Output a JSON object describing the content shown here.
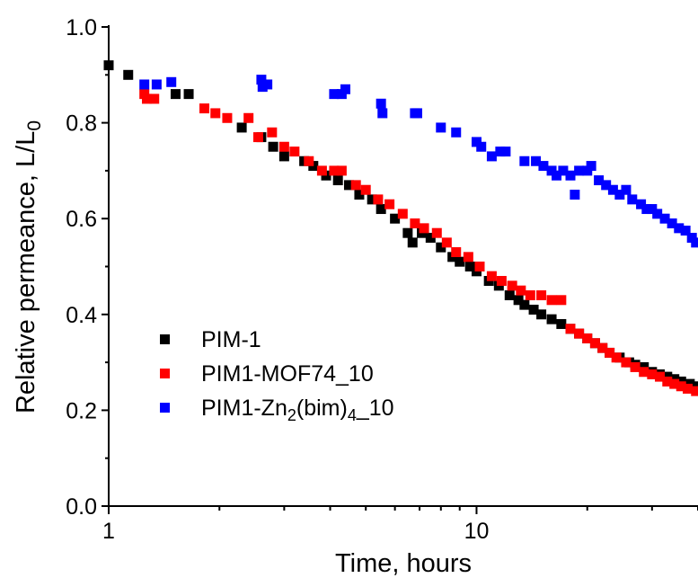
{
  "chart_data": {
    "type": "scatter",
    "xscale": "log",
    "xlim": [
      1,
      40
    ],
    "ylim": [
      0.0,
      1.0
    ],
    "xlabel": "Time, hours",
    "ylabel": {
      "main": "Relative permeance, L/L",
      "sub": "0"
    },
    "xticks": [
      {
        "value": 1,
        "label": "1"
      },
      {
        "value": 10,
        "label": "10"
      }
    ],
    "yticks": [
      {
        "value": 0.0,
        "label": "0.0"
      },
      {
        "value": 0.2,
        "label": "0.2"
      },
      {
        "value": 0.4,
        "label": "0.4"
      },
      {
        "value": 0.6,
        "label": "0.6"
      },
      {
        "value": 0.8,
        "label": "0.8"
      },
      {
        "value": 1.0,
        "label": "1.0"
      }
    ],
    "grid": false,
    "legend_position": "bottom-left",
    "series": [
      {
        "name": "PIM-1",
        "legend": [
          {
            "t": "PIM-1",
            "s": ""
          }
        ],
        "color": "#000000",
        "points": [
          [
            1.0,
            0.92
          ],
          [
            1.13,
            0.9
          ],
          [
            1.52,
            0.86
          ],
          [
            1.65,
            0.86
          ],
          [
            2.3,
            0.79
          ],
          [
            2.6,
            0.77
          ],
          [
            2.8,
            0.75
          ],
          [
            3.0,
            0.73
          ],
          [
            3.4,
            0.72
          ],
          [
            3.6,
            0.71
          ],
          [
            3.9,
            0.69
          ],
          [
            4.2,
            0.68
          ],
          [
            4.5,
            0.67
          ],
          [
            4.8,
            0.65
          ],
          [
            5.2,
            0.64
          ],
          [
            5.5,
            0.62
          ],
          [
            6.0,
            0.6
          ],
          [
            6.5,
            0.57
          ],
          [
            6.7,
            0.55
          ],
          [
            7.1,
            0.57
          ],
          [
            7.5,
            0.56
          ],
          [
            8.0,
            0.54
          ],
          [
            8.6,
            0.52
          ],
          [
            9.0,
            0.51
          ],
          [
            9.6,
            0.5
          ],
          [
            10.0,
            0.49
          ],
          [
            10.8,
            0.47
          ],
          [
            11.5,
            0.46
          ],
          [
            12.3,
            0.44
          ],
          [
            13.0,
            0.43
          ],
          [
            13.5,
            0.42
          ],
          [
            14.3,
            0.41
          ],
          [
            15.0,
            0.4
          ],
          [
            16.0,
            0.39
          ],
          [
            17.0,
            0.38
          ],
          [
            18.0,
            0.37
          ],
          [
            19.0,
            0.36
          ],
          [
            20.0,
            0.35
          ],
          [
            21.0,
            0.34
          ],
          [
            22.0,
            0.33
          ],
          [
            23.0,
            0.32
          ],
          [
            24.5,
            0.31
          ],
          [
            26.0,
            0.3
          ],
          [
            27.0,
            0.295
          ],
          [
            28.5,
            0.29
          ],
          [
            30.0,
            0.28
          ],
          [
            31.5,
            0.275
          ],
          [
            33.0,
            0.27
          ],
          [
            34.5,
            0.265
          ],
          [
            36.0,
            0.26
          ],
          [
            38.0,
            0.255
          ],
          [
            39.5,
            0.25
          ]
        ]
      },
      {
        "name": "PIM1-MOF74_10",
        "legend": [
          {
            "t": "PIM1-MOF74_10",
            "s": ""
          }
        ],
        "color": "#ff0000",
        "points": [
          [
            1.25,
            0.86
          ],
          [
            1.27,
            0.85
          ],
          [
            1.33,
            0.85
          ],
          [
            1.82,
            0.83
          ],
          [
            1.95,
            0.82
          ],
          [
            2.1,
            0.81
          ],
          [
            2.4,
            0.81
          ],
          [
            2.55,
            0.77
          ],
          [
            2.78,
            0.78
          ],
          [
            3.0,
            0.75
          ],
          [
            3.2,
            0.74
          ],
          [
            3.5,
            0.72
          ],
          [
            3.8,
            0.7
          ],
          [
            4.1,
            0.7
          ],
          [
            4.3,
            0.7
          ],
          [
            4.7,
            0.67
          ],
          [
            5.0,
            0.66
          ],
          [
            5.4,
            0.64
          ],
          [
            5.8,
            0.63
          ],
          [
            6.3,
            0.61
          ],
          [
            6.8,
            0.59
          ],
          [
            7.2,
            0.58
          ],
          [
            7.8,
            0.57
          ],
          [
            8.3,
            0.55
          ],
          [
            8.8,
            0.53
          ],
          [
            9.5,
            0.52
          ],
          [
            10.2,
            0.5
          ],
          [
            11.0,
            0.48
          ],
          [
            11.7,
            0.47
          ],
          [
            12.5,
            0.46
          ],
          [
            13.2,
            0.45
          ],
          [
            14.0,
            0.44
          ],
          [
            15.0,
            0.44
          ],
          [
            16.0,
            0.43
          ],
          [
            17.0,
            0.43
          ],
          [
            18.0,
            0.37
          ],
          [
            19.0,
            0.36
          ],
          [
            20.0,
            0.35
          ],
          [
            21.0,
            0.34
          ],
          [
            22.0,
            0.33
          ],
          [
            23.0,
            0.32
          ],
          [
            24.0,
            0.31
          ],
          [
            25.5,
            0.3
          ],
          [
            27.0,
            0.29
          ],
          [
            28.5,
            0.28
          ],
          [
            30.0,
            0.275
          ],
          [
            31.5,
            0.27
          ],
          [
            33.0,
            0.26
          ],
          [
            34.5,
            0.255
          ],
          [
            36.0,
            0.25
          ],
          [
            37.5,
            0.245
          ],
          [
            39.5,
            0.24
          ]
        ]
      },
      {
        "name": "PIM1-Zn2(bim)4_10",
        "legend": [
          {
            "t": "PIM1-Zn",
            "s": ""
          },
          {
            "t": "2",
            "s": "sub"
          },
          {
            "t": "(bim)",
            "s": ""
          },
          {
            "t": "4",
            "s": "sub"
          },
          {
            "t": "_10",
            "s": ""
          }
        ],
        "color": "#0000ff",
        "points": [
          [
            1.25,
            0.88
          ],
          [
            1.35,
            0.88
          ],
          [
            1.48,
            0.885
          ],
          [
            2.6,
            0.89
          ],
          [
            2.62,
            0.875
          ],
          [
            2.7,
            0.88
          ],
          [
            4.1,
            0.86
          ],
          [
            4.3,
            0.86
          ],
          [
            4.4,
            0.87
          ],
          [
            5.5,
            0.84
          ],
          [
            5.55,
            0.82
          ],
          [
            6.8,
            0.82
          ],
          [
            6.9,
            0.82
          ],
          [
            8.0,
            0.79
          ],
          [
            8.8,
            0.78
          ],
          [
            10.0,
            0.76
          ],
          [
            10.3,
            0.75
          ],
          [
            11.0,
            0.73
          ],
          [
            11.6,
            0.74
          ],
          [
            12.0,
            0.74
          ],
          [
            13.5,
            0.72
          ],
          [
            14.5,
            0.72
          ],
          [
            15.2,
            0.71
          ],
          [
            16.0,
            0.7
          ],
          [
            16.5,
            0.69
          ],
          [
            17.2,
            0.7
          ],
          [
            18.0,
            0.69
          ],
          [
            18.5,
            0.65
          ],
          [
            19.0,
            0.7
          ],
          [
            20.0,
            0.7
          ],
          [
            20.5,
            0.71
          ],
          [
            21.5,
            0.68
          ],
          [
            22.5,
            0.67
          ],
          [
            23.5,
            0.66
          ],
          [
            24.5,
            0.65
          ],
          [
            25.5,
            0.66
          ],
          [
            26.5,
            0.64
          ],
          [
            28.0,
            0.63
          ],
          [
            29.0,
            0.62
          ],
          [
            30.0,
            0.62
          ],
          [
            31.0,
            0.61
          ],
          [
            32.5,
            0.6
          ],
          [
            34.0,
            0.59
          ],
          [
            35.5,
            0.58
          ],
          [
            37.0,
            0.575
          ],
          [
            38.5,
            0.56
          ],
          [
            39.5,
            0.55
          ]
        ]
      }
    ]
  }
}
